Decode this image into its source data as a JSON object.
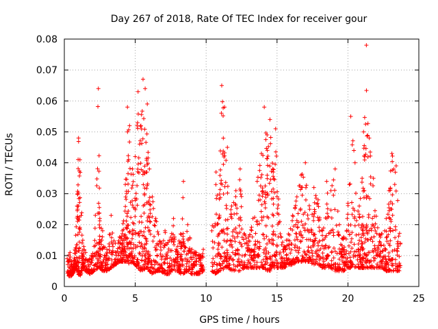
{
  "chart_data": {
    "type": "scatter",
    "title": "Day 267 of 2018, Rate Of TEC Index for receiver gour",
    "xlabel": "GPS time / hours",
    "ylabel": "ROTI / TECUs",
    "xlim": [
      0,
      25
    ],
    "ylim": [
      0,
      0.08
    ],
    "xticks": [
      0,
      5,
      10,
      15,
      20,
      25
    ],
    "xtick_labels": [
      "0",
      "5",
      "10",
      "15",
      "20",
      "25"
    ],
    "yticks": [
      0,
      0.01,
      0.02,
      0.03,
      0.04,
      0.05,
      0.06,
      0.07,
      0.08
    ],
    "ytick_labels": [
      "0",
      "0.01",
      "0.02",
      "0.03",
      "0.04",
      "0.05",
      "0.06",
      "0.07",
      "0.08"
    ],
    "grid": true,
    "marker": "+",
    "colors": {
      "points": "#ff0000",
      "grid": "#a0a0a0",
      "frame": "#000000"
    },
    "x": [
      0.2,
      0.4,
      0.6,
      0.75,
      0.9,
      1.0,
      1.1,
      1.3,
      1.5,
      1.8,
      2.1,
      2.4,
      2.5,
      2.7,
      3.0,
      3.3,
      3.6,
      3.9,
      4.1,
      4.3,
      4.45,
      4.6,
      4.8,
      5.0,
      5.2,
      5.4,
      5.55,
      5.7,
      5.85,
      6.0,
      6.2,
      6.5,
      6.8,
      7.1,
      7.4,
      7.7,
      8.0,
      8.2,
      8.4,
      8.7,
      9.0,
      9.3,
      9.6,
      9.8,
      10.4,
      10.7,
      10.9,
      11.1,
      11.3,
      11.5,
      11.8,
      12.1,
      12.4,
      12.7,
      13.0,
      13.3,
      13.6,
      13.9,
      14.1,
      14.3,
      14.5,
      14.7,
      14.9,
      15.2,
      15.5,
      15.8,
      16.1,
      16.4,
      16.7,
      17.0,
      17.3,
      17.6,
      17.9,
      18.2,
      18.5,
      18.8,
      19.1,
      19.4,
      19.7,
      19.95,
      20.2,
      20.5,
      20.8,
      21.0,
      21.1,
      21.3,
      21.5,
      21.8,
      22.1,
      22.4,
      22.7,
      22.9,
      23.1,
      23.4,
      23.7
    ],
    "y": [
      0.009,
      0.011,
      0.006,
      0.012,
      0.026,
      0.048,
      0.041,
      0.015,
      0.011,
      0.009,
      0.013,
      0.064,
      0.022,
      0.018,
      0.012,
      0.023,
      0.014,
      0.016,
      0.018,
      0.033,
      0.058,
      0.052,
      0.038,
      0.042,
      0.063,
      0.052,
      0.067,
      0.064,
      0.059,
      0.038,
      0.029,
      0.021,
      0.014,
      0.018,
      0.015,
      0.022,
      0.013,
      0.017,
      0.034,
      0.02,
      0.012,
      0.011,
      0.01,
      0.012,
      0.018,
      0.037,
      0.022,
      0.065,
      0.058,
      0.045,
      0.026,
      0.031,
      0.038,
      0.017,
      0.016,
      0.022,
      0.034,
      0.043,
      0.058,
      0.049,
      0.054,
      0.038,
      0.051,
      0.021,
      0.013,
      0.017,
      0.023,
      0.029,
      0.036,
      0.04,
      0.025,
      0.032,
      0.028,
      0.018,
      0.034,
      0.031,
      0.038,
      0.02,
      0.016,
      0.022,
      0.055,
      0.04,
      0.026,
      0.035,
      0.05,
      0.078,
      0.048,
      0.035,
      0.019,
      0.017,
      0.022,
      0.031,
      0.043,
      0.039,
      0.014
    ],
    "lower_envelope": [
      0.004,
      0.003,
      0.004,
      0.006,
      0.005,
      0.004,
      0.003,
      0.006,
      0.005,
      0.004,
      0.005,
      0.006,
      0.006,
      0.005,
      0.005,
      0.006,
      0.007,
      0.008,
      0.008,
      0.008,
      0.008,
      0.007,
      0.008,
      0.007,
      0.006,
      0.005,
      0.005,
      0.006,
      0.006,
      0.005,
      0.004,
      0.005,
      0.005,
      0.004,
      0.004,
      0.005,
      0.005,
      0.004,
      0.004,
      0.005,
      0.004,
      0.004,
      0.004,
      0.005,
      0.005,
      0.004,
      0.005,
      0.005,
      0.006,
      0.006,
      0.005,
      0.005,
      0.005,
      0.006,
      0.006,
      0.006,
      0.006,
      0.006,
      0.006,
      0.005,
      0.005,
      0.006,
      0.006,
      0.006,
      0.006,
      0.007,
      0.007,
      0.008,
      0.008,
      0.008,
      0.008,
      0.007,
      0.007,
      0.006,
      0.006,
      0.006,
      0.005,
      0.005,
      0.005,
      0.006,
      0.006,
      0.006,
      0.006,
      0.006,
      0.006,
      0.006,
      0.006,
      0.006,
      0.006,
      0.006,
      0.005,
      0.005,
      0.005,
      0.005,
      0.005
    ]
  }
}
